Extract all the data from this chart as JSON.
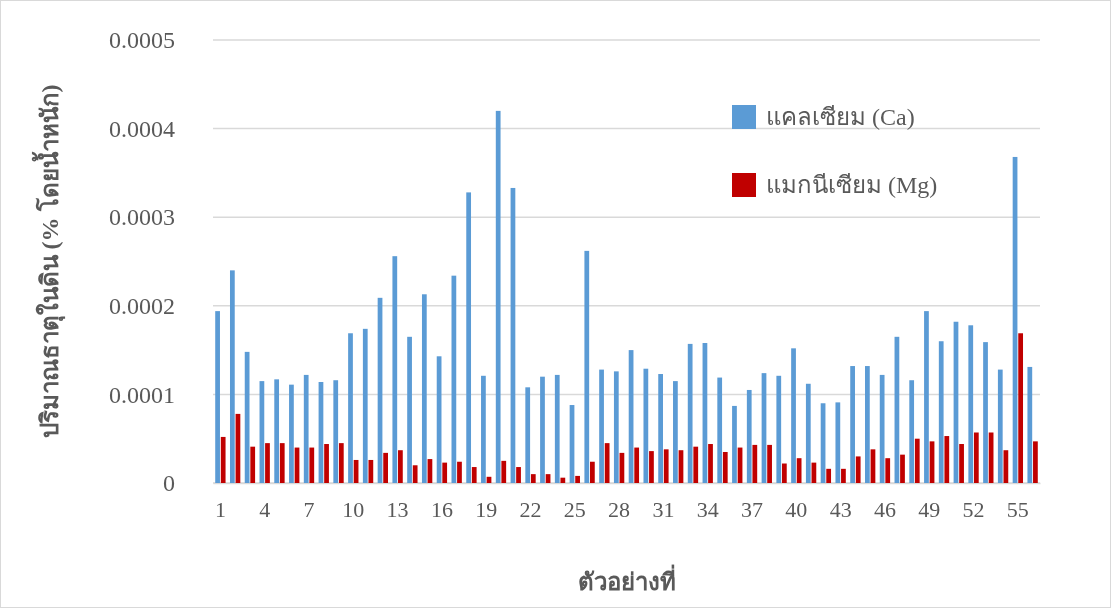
{
  "chart_data": {
    "type": "bar",
    "xlabel": "ตัวอย่างที่",
    "ylabel": "ปริมาณธาตุในดิน (% โดยน้ำหนัก)",
    "categories": [
      "1",
      null,
      null,
      "4",
      null,
      null,
      "7",
      null,
      null,
      "10",
      null,
      null,
      "13",
      null,
      null,
      "16",
      null,
      null,
      "19",
      null,
      null,
      "22",
      null,
      null,
      "25",
      null,
      null,
      "28",
      null,
      null,
      "31",
      null,
      null,
      "34",
      null,
      null,
      "37",
      null,
      null,
      "40",
      null,
      null,
      "43",
      null,
      null,
      "46",
      null,
      null,
      "49",
      null,
      null,
      "52",
      null,
      null,
      "55",
      null
    ],
    "series": [
      {
        "name": "แคลเซียม (Ca)",
        "color": "#5b9bd5",
        "values": [
          0.000194,
          0.00024,
          0.000148,
          0.000115,
          0.000117,
          0.000111,
          0.000122,
          0.000114,
          0.000116,
          0.000169,
          0.000174,
          0.000209,
          0.000256,
          0.000165,
          0.000213,
          0.000143,
          0.000234,
          0.000328,
          0.000121,
          0.00042,
          0.000333,
          0.000108,
          0.00012,
          0.000122,
          8.8e-05,
          0.000262,
          0.000128,
          0.000126,
          0.00015,
          0.000129,
          0.000123,
          0.000115,
          0.000157,
          0.000158,
          0.000119,
          8.7e-05,
          0.000105,
          0.000124,
          0.000121,
          0.000152,
          0.000112,
          9e-05,
          9.1e-05,
          0.000132,
          0.000132,
          0.000122,
          0.000165,
          0.000116,
          0.000194,
          0.00016,
          0.000182,
          0.000178,
          0.000159,
          0.000128,
          0.000368,
          0.000131
        ]
      },
      {
        "name": "แมกนีเซียม (Mg)",
        "color": "#c00000",
        "values": [
          5.2e-05,
          7.8e-05,
          4.1e-05,
          4.5e-05,
          4.5e-05,
          4e-05,
          4e-05,
          4.4e-05,
          4.5e-05,
          2.6e-05,
          2.6e-05,
          3.4e-05,
          3.7e-05,
          2e-05,
          2.7e-05,
          2.3e-05,
          2.4e-05,
          1.8e-05,
          7e-06,
          2.5e-05,
          1.8e-05,
          1e-05,
          1e-05,
          6e-06,
          8e-06,
          2.4e-05,
          4.5e-05,
          3.4e-05,
          4e-05,
          3.6e-05,
          3.8e-05,
          3.7e-05,
          4.1e-05,
          4.4e-05,
          3.5e-05,
          4e-05,
          4.3e-05,
          4.3e-05,
          2.2e-05,
          2.8e-05,
          2.3e-05,
          1.6e-05,
          1.6e-05,
          3e-05,
          3.8e-05,
          2.8e-05,
          3.2e-05,
          5e-05,
          4.7e-05,
          5.3e-05,
          4.4e-05,
          5.7e-05,
          5.7e-05,
          3.7e-05,
          0.000169,
          4.7e-05
        ]
      }
    ],
    "ylim": [
      0,
      0.0005
    ],
    "yticks": [
      0,
      0.0001,
      0.0002,
      0.0003,
      0.0004,
      0.0005
    ],
    "grid": "y",
    "legend": "top right"
  }
}
